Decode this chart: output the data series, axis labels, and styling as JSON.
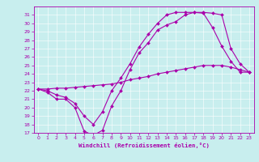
{
  "title": "",
  "xlabel": "Windchill (Refroidissement éolien,°C)",
  "ylabel": "",
  "background_color": "#c8eeee",
  "line_color": "#aa00aa",
  "xlim": [
    -0.5,
    23.5
  ],
  "ylim": [
    17,
    32
  ],
  "xticks": [
    0,
    1,
    2,
    3,
    4,
    5,
    6,
    7,
    8,
    9,
    10,
    11,
    12,
    13,
    14,
    15,
    16,
    17,
    18,
    19,
    20,
    21,
    22,
    23
  ],
  "yticks": [
    17,
    18,
    19,
    20,
    21,
    22,
    23,
    24,
    25,
    26,
    27,
    28,
    29,
    30,
    31
  ],
  "curve1_x": [
    0,
    1,
    2,
    3,
    4,
    5,
    6,
    7,
    8,
    9,
    10,
    11,
    12,
    13,
    14,
    15,
    16,
    17,
    18,
    19,
    20,
    21,
    22,
    23
  ],
  "curve1_y": [
    22.2,
    21.8,
    21.0,
    21.0,
    20.0,
    17.2,
    16.7,
    17.3,
    20.2,
    22.0,
    24.5,
    26.5,
    27.7,
    29.2,
    29.8,
    30.2,
    31.0,
    31.3,
    31.2,
    29.5,
    27.3,
    25.5,
    24.2,
    24.2
  ],
  "curve2_x": [
    0,
    1,
    2,
    3,
    4,
    5,
    6,
    7,
    8,
    9,
    10,
    11,
    12,
    13,
    14,
    15,
    16,
    17,
    18,
    19,
    20,
    21,
    22,
    23
  ],
  "curve2_y": [
    22.2,
    22.0,
    21.5,
    21.2,
    20.5,
    19.0,
    18.0,
    19.5,
    22.0,
    23.5,
    25.2,
    27.2,
    28.7,
    30.0,
    31.0,
    31.3,
    31.3,
    31.3,
    31.3,
    31.2,
    31.0,
    27.0,
    25.2,
    24.2
  ],
  "curve3_x": [
    0,
    1,
    2,
    3,
    4,
    5,
    6,
    7,
    8,
    9,
    10,
    11,
    12,
    13,
    14,
    15,
    16,
    17,
    18,
    19,
    20,
    21,
    22,
    23
  ],
  "curve3_y": [
    22.2,
    22.2,
    22.3,
    22.3,
    22.4,
    22.5,
    22.6,
    22.7,
    22.8,
    23.0,
    23.3,
    23.5,
    23.7,
    24.0,
    24.2,
    24.4,
    24.6,
    24.8,
    25.0,
    25.0,
    25.0,
    24.8,
    24.5,
    24.2
  ]
}
